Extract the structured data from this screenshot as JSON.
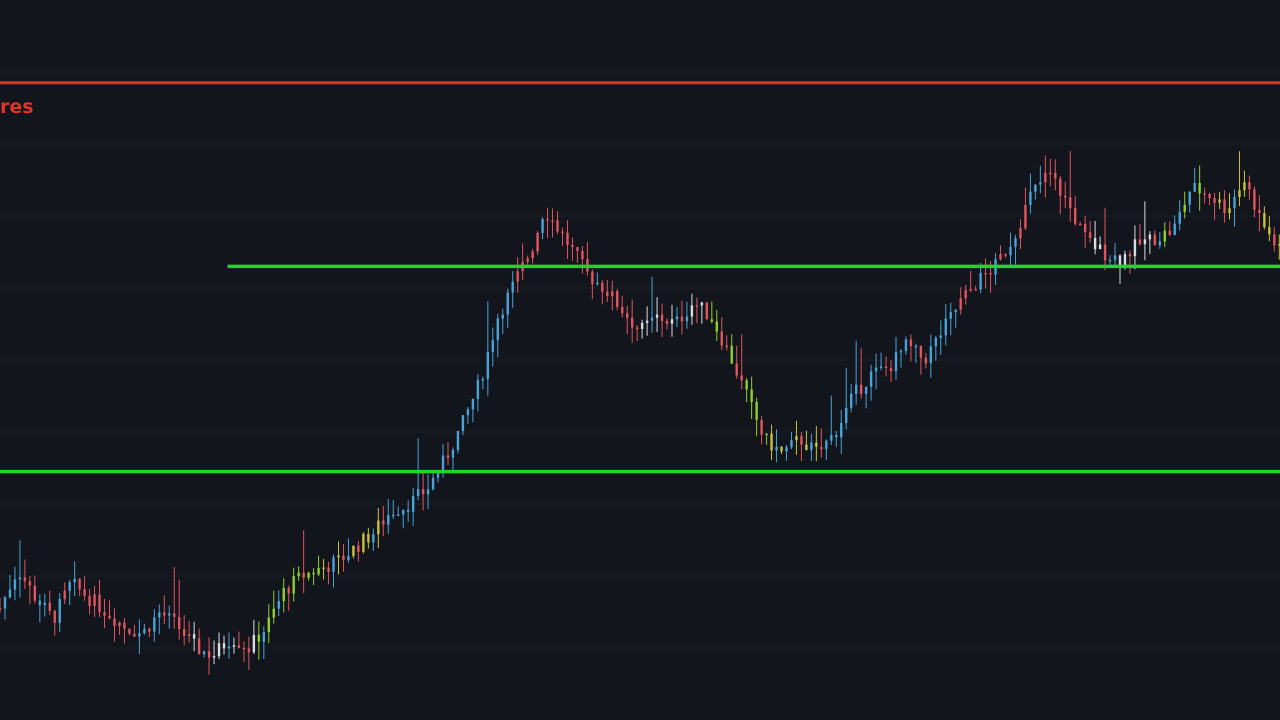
{
  "colors": {
    "background": "#12151b",
    "grid": "#1b1f27",
    "resistance": "#e0332a",
    "support": "#22d52a",
    "candle_blue": "#4aa3d8",
    "candle_red": "#e0555f",
    "candle_green": "#8fd12c",
    "candle_yellow": "#c9c23a",
    "candle_white": "#d8dde3"
  },
  "chart_data": {
    "type": "candlestick",
    "title": "",
    "xlabel": "",
    "ylabel": "",
    "ylim": [
      0,
      100
    ],
    "grid": true,
    "resistance_label": "res",
    "levels": [
      {
        "kind": "resistance",
        "value": 88.5,
        "x_start": 0,
        "x_end": 360
      },
      {
        "kind": "support",
        "value": 63.0,
        "x_start": 64,
        "x_end": 360
      },
      {
        "kind": "support",
        "value": 34.5,
        "x_start": 0,
        "x_end": 360
      }
    ],
    "x_range": [
      0,
      360
    ],
    "series": [
      {
        "key": "price",
        "points": [
          [
            0,
            15.5
          ],
          [
            5,
            21
          ],
          [
            10,
            17
          ],
          [
            15,
            14
          ],
          [
            20,
            19
          ],
          [
            25,
            17
          ],
          [
            30,
            15
          ],
          [
            35,
            13
          ],
          [
            40,
            12
          ],
          [
            45,
            15
          ],
          [
            50,
            13
          ],
          [
            55,
            10
          ],
          [
            60,
            9
          ],
          [
            65,
            11.5
          ],
          [
            70,
            10
          ],
          [
            75,
            13
          ],
          [
            80,
            18
          ],
          [
            85,
            20
          ],
          [
            90,
            21
          ],
          [
            95,
            22
          ],
          [
            100,
            24
          ],
          [
            105,
            26
          ],
          [
            110,
            29
          ],
          [
            115,
            30
          ],
          [
            120,
            32
          ],
          [
            125,
            36
          ],
          [
            130,
            41
          ],
          [
            135,
            47
          ],
          [
            140,
            56
          ],
          [
            145,
            61
          ],
          [
            150,
            66
          ],
          [
            153,
            71
          ],
          [
            156,
            69
          ],
          [
            160,
            66
          ],
          [
            165,
            62
          ],
          [
            170,
            60
          ],
          [
            175,
            57
          ],
          [
            180,
            54
          ],
          [
            185,
            56
          ],
          [
            190,
            55
          ],
          [
            195,
            58
          ],
          [
            200,
            56
          ],
          [
            205,
            51
          ],
          [
            210,
            45
          ],
          [
            215,
            39
          ],
          [
            220,
            37
          ],
          [
            225,
            39
          ],
          [
            230,
            37
          ],
          [
            235,
            40
          ],
          [
            240,
            45
          ],
          [
            245,
            48
          ],
          [
            250,
            49
          ],
          [
            255,
            52
          ],
          [
            260,
            50
          ],
          [
            265,
            54
          ],
          [
            270,
            58
          ],
          [
            275,
            61
          ],
          [
            280,
            63
          ],
          [
            285,
            67
          ],
          [
            290,
            73
          ],
          [
            295,
            76
          ],
          [
            300,
            72
          ],
          [
            305,
            67
          ],
          [
            310,
            65
          ],
          [
            315,
            64
          ],
          [
            320,
            66
          ],
          [
            325,
            67
          ],
          [
            330,
            68
          ],
          [
            335,
            74
          ],
          [
            340,
            73
          ],
          [
            345,
            71
          ],
          [
            350,
            75
          ],
          [
            355,
            69
          ],
          [
            360,
            65
          ]
        ]
      }
    ]
  }
}
